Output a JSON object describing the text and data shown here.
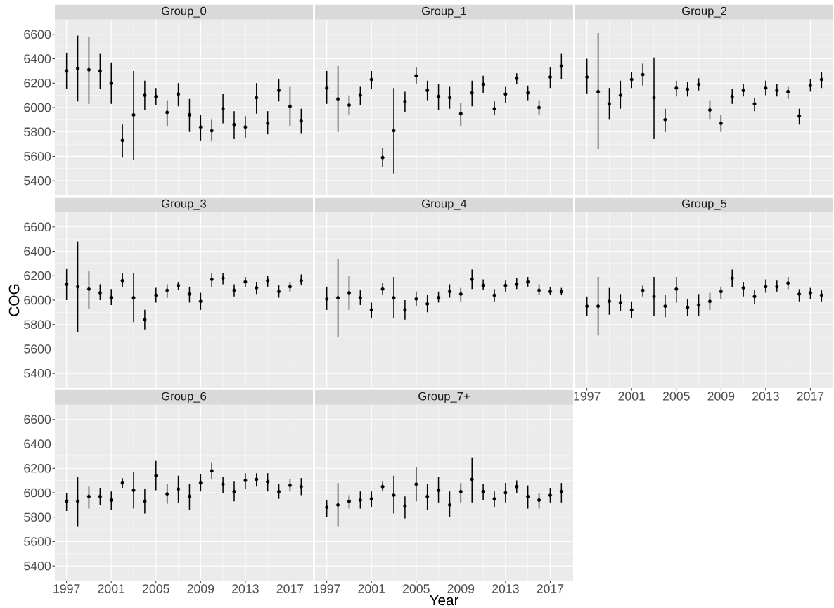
{
  "chart_data": [
    {
      "type": "scatter",
      "title": "Group_0",
      "x": [
        1997,
        1998,
        1999,
        2000,
        2001,
        2002,
        2003,
        2004,
        2005,
        2006,
        2007,
        2008,
        2009,
        2010,
        2011,
        2012,
        2013,
        2014,
        2015,
        2016,
        2017,
        2018
      ],
      "color": "#000000",
      "marker": "circle",
      "grid": true,
      "tick_labels": "y",
      "xlim": [
        1995.95,
        2019.05
      ],
      "ylim": [
        5280,
        6720
      ],
      "xticks": [
        1997,
        2001,
        2005,
        2009,
        2013,
        2017
      ],
      "yticks": [
        5400,
        5600,
        5800,
        6000,
        6200,
        6400,
        6600
      ],
      "values": [
        6300,
        6320,
        6310,
        6300,
        6200,
        5730,
        5940,
        6100,
        6090,
        5960,
        6110,
        5940,
        5840,
        5810,
        5990,
        5860,
        5840,
        6080,
        5870,
        6140,
        6010,
        5890
      ],
      "errors": [
        [
          6150,
          6450
        ],
        [
          6050,
          6590
        ],
        [
          6030,
          6580
        ],
        [
          6150,
          6440
        ],
        [
          6030,
          6370
        ],
        [
          5590,
          5860
        ],
        [
          5570,
          6300
        ],
        [
          5980,
          6220
        ],
        [
          6020,
          6160
        ],
        [
          5850,
          6060
        ],
        [
          6010,
          6200
        ],
        [
          5800,
          6070
        ],
        [
          5730,
          5940
        ],
        [
          5730,
          5900
        ],
        [
          5870,
          6110
        ],
        [
          5740,
          5970
        ],
        [
          5750,
          5930
        ],
        [
          5950,
          6200
        ],
        [
          5780,
          5970
        ],
        [
          6050,
          6230
        ],
        [
          5850,
          6170
        ],
        [
          5790,
          5990
        ]
      ]
    },
    {
      "type": "scatter",
      "title": "Group_1",
      "x": [
        1997,
        1998,
        1999,
        2000,
        2001,
        2002,
        2003,
        2004,
        2005,
        2006,
        2007,
        2008,
        2009,
        2010,
        2011,
        2012,
        2013,
        2014,
        2015,
        2016,
        2017,
        2018
      ],
      "color": "#000000",
      "marker": "circle",
      "grid": true,
      "tick_labels": false,
      "xlim": [
        1995.95,
        2019.05
      ],
      "ylim": [
        5280,
        6720
      ],
      "xticks": [
        1997,
        2001,
        2005,
        2009,
        2013,
        2017
      ],
      "yticks": [
        5400,
        5600,
        5800,
        6000,
        6200,
        6400,
        6600
      ],
      "values": [
        6160,
        6070,
        6020,
        6100,
        6230,
        5590,
        5810,
        6050,
        6260,
        6140,
        6090,
        6080,
        5950,
        6120,
        6190,
        5990,
        6110,
        6240,
        6120,
        6000,
        6250,
        6340
      ],
      "errors": [
        [
          6030,
          6300
        ],
        [
          5800,
          6340
        ],
        [
          5940,
          6100
        ],
        [
          6020,
          6170
        ],
        [
          6150,
          6300
        ],
        [
          5510,
          5670
        ],
        [
          5460,
          6160
        ],
        [
          5960,
          6130
        ],
        [
          6190,
          6330
        ],
        [
          6060,
          6220
        ],
        [
          5980,
          6190
        ],
        [
          5990,
          6170
        ],
        [
          5850,
          6040
        ],
        [
          6010,
          6220
        ],
        [
          6120,
          6260
        ],
        [
          5940,
          6050
        ],
        [
          6040,
          6170
        ],
        [
          6190,
          6280
        ],
        [
          6060,
          6180
        ],
        [
          5940,
          6060
        ],
        [
          6160,
          6330
        ],
        [
          6230,
          6440
        ]
      ]
    },
    {
      "type": "scatter",
      "title": "Group_2",
      "x": [
        1997,
        1998,
        1999,
        2000,
        2001,
        2002,
        2003,
        2004,
        2005,
        2006,
        2007,
        2008,
        2009,
        2010,
        2011,
        2012,
        2013,
        2014,
        2015,
        2016,
        2017,
        2018
      ],
      "color": "#000000",
      "marker": "circle",
      "grid": true,
      "tick_labels": false,
      "xlim": [
        1995.95,
        2019.05
      ],
      "ylim": [
        5280,
        6720
      ],
      "xticks": [
        1997,
        2001,
        2005,
        2009,
        2013,
        2017
      ],
      "yticks": [
        5400,
        5600,
        5800,
        6000,
        6200,
        6400,
        6600
      ],
      "values": [
        6250,
        6130,
        6030,
        6100,
        6230,
        6270,
        6080,
        5900,
        6160,
        6150,
        6190,
        5980,
        5870,
        6090,
        6140,
        6030,
        6160,
        6140,
        6130,
        5930,
        6180,
        6230
      ],
      "errors": [
        [
          6110,
          6400
        ],
        [
          5660,
          6610
        ],
        [
          5900,
          6160
        ],
        [
          5990,
          6220
        ],
        [
          6160,
          6290
        ],
        [
          6180,
          6360
        ],
        [
          5740,
          6410
        ],
        [
          5800,
          5990
        ],
        [
          6090,
          6220
        ],
        [
          6090,
          6210
        ],
        [
          6140,
          6240
        ],
        [
          5900,
          6060
        ],
        [
          5800,
          5940
        ],
        [
          6030,
          6150
        ],
        [
          6090,
          6190
        ],
        [
          5970,
          6080
        ],
        [
          6100,
          6220
        ],
        [
          6090,
          6190
        ],
        [
          6070,
          6170
        ],
        [
          5860,
          5990
        ],
        [
          6130,
          6230
        ],
        [
          6160,
          6290
        ]
      ]
    },
    {
      "type": "scatter",
      "title": "Group_3",
      "ylabel": "COG",
      "x": [
        1997,
        1998,
        1999,
        2000,
        2001,
        2002,
        2003,
        2004,
        2005,
        2006,
        2007,
        2008,
        2009,
        2010,
        2011,
        2012,
        2013,
        2014,
        2015,
        2016,
        2017,
        2018
      ],
      "color": "#000000",
      "marker": "circle",
      "grid": true,
      "tick_labels": "y",
      "xlim": [
        1995.95,
        2019.05
      ],
      "ylim": [
        5280,
        6720
      ],
      "xticks": [
        1997,
        2001,
        2005,
        2009,
        2013,
        2017
      ],
      "yticks": [
        5400,
        5600,
        5800,
        6000,
        6200,
        6400,
        6600
      ],
      "values": [
        6130,
        6110,
        6090,
        6060,
        6020,
        6160,
        6020,
        5840,
        6040,
        6080,
        6120,
        6050,
        5990,
        6170,
        6180,
        6080,
        6150,
        6100,
        6160,
        6070,
        6110,
        6160
      ],
      "errors": [
        [
          6000,
          6260
        ],
        [
          5740,
          6480
        ],
        [
          5930,
          6240
        ],
        [
          6000,
          6130
        ],
        [
          5960,
          6090
        ],
        [
          6110,
          6220
        ],
        [
          5820,
          6220
        ],
        [
          5760,
          5920
        ],
        [
          5980,
          6100
        ],
        [
          6020,
          6130
        ],
        [
          6080,
          6150
        ],
        [
          5980,
          6110
        ],
        [
          5920,
          6060
        ],
        [
          6110,
          6220
        ],
        [
          6130,
          6220
        ],
        [
          6030,
          6130
        ],
        [
          6110,
          6190
        ],
        [
          6050,
          6150
        ],
        [
          6110,
          6200
        ],
        [
          6020,
          6120
        ],
        [
          6070,
          6150
        ],
        [
          6120,
          6210
        ]
      ]
    },
    {
      "type": "scatter",
      "title": "Group_4",
      "x": [
        1997,
        1998,
        1999,
        2000,
        2001,
        2002,
        2003,
        2004,
        2005,
        2006,
        2007,
        2008,
        2009,
        2010,
        2011,
        2012,
        2013,
        2014,
        2015,
        2016,
        2017,
        2018
      ],
      "color": "#000000",
      "marker": "circle",
      "grid": true,
      "tick_labels": false,
      "xlim": [
        1995.95,
        2019.05
      ],
      "ylim": [
        5280,
        6720
      ],
      "xticks": [
        1997,
        2001,
        2005,
        2009,
        2013,
        2017
      ],
      "yticks": [
        5400,
        5600,
        5800,
        6000,
        6200,
        6400,
        6600
      ],
      "values": [
        6010,
        6020,
        6060,
        6020,
        5920,
        6090,
        6020,
        5920,
        6010,
        5970,
        6020,
        6070,
        6050,
        6170,
        6120,
        6040,
        6120,
        6130,
        6150,
        6080,
        6070,
        6070
      ],
      "errors": [
        [
          5920,
          6110
        ],
        [
          5700,
          6340
        ],
        [
          5920,
          6200
        ],
        [
          5960,
          6080
        ],
        [
          5850,
          5980
        ],
        [
          6040,
          6140
        ],
        [
          5850,
          6190
        ],
        [
          5840,
          6000
        ],
        [
          5950,
          6070
        ],
        [
          5900,
          6040
        ],
        [
          5980,
          6070
        ],
        [
          6020,
          6130
        ],
        [
          5990,
          6100
        ],
        [
          6090,
          6250
        ],
        [
          6080,
          6170
        ],
        [
          5990,
          6090
        ],
        [
          6070,
          6160
        ],
        [
          6090,
          6180
        ],
        [
          6110,
          6190
        ],
        [
          6040,
          6130
        ],
        [
          6040,
          6110
        ],
        [
          6040,
          6100
        ]
      ]
    },
    {
      "type": "scatter",
      "title": "Group_5",
      "x": [
        1997,
        1998,
        1999,
        2000,
        2001,
        2002,
        2003,
        2004,
        2005,
        2006,
        2007,
        2008,
        2009,
        2010,
        2011,
        2012,
        2013,
        2014,
        2015,
        2016,
        2017,
        2018
      ],
      "color": "#000000",
      "marker": "circle",
      "grid": true,
      "tick_labels": "x",
      "xlim": [
        1995.95,
        2019.05
      ],
      "ylim": [
        5280,
        6720
      ],
      "xticks": [
        1997,
        2001,
        2005,
        2009,
        2013,
        2017
      ],
      "yticks": [
        5400,
        5600,
        5800,
        6000,
        6200,
        6400,
        6600
      ],
      "values": [
        5950,
        5950,
        5990,
        5980,
        5920,
        6080,
        6030,
        5950,
        6090,
        5940,
        5960,
        5990,
        6070,
        6180,
        6100,
        6030,
        6110,
        6110,
        6140,
        6050,
        6060,
        6040
      ],
      "errors": [
        [
          5870,
          6030
        ],
        [
          5710,
          6190
        ],
        [
          5880,
          6100
        ],
        [
          5910,
          6050
        ],
        [
          5850,
          5990
        ],
        [
          6030,
          6120
        ],
        [
          5870,
          6190
        ],
        [
          5860,
          6040
        ],
        [
          5980,
          6190
        ],
        [
          5870,
          6010
        ],
        [
          5870,
          6050
        ],
        [
          5920,
          6060
        ],
        [
          6010,
          6110
        ],
        [
          6110,
          6250
        ],
        [
          6030,
          6150
        ],
        [
          5970,
          6080
        ],
        [
          6060,
          6170
        ],
        [
          6070,
          6160
        ],
        [
          6090,
          6190
        ],
        [
          5990,
          6090
        ],
        [
          6010,
          6100
        ],
        [
          5990,
          6080
        ]
      ]
    },
    {
      "type": "scatter",
      "title": "Group_6",
      "x": [
        1997,
        1998,
        1999,
        2000,
        2001,
        2002,
        2003,
        2004,
        2005,
        2006,
        2007,
        2008,
        2009,
        2010,
        2011,
        2012,
        2013,
        2014,
        2015,
        2016,
        2017,
        2018
      ],
      "color": "#000000",
      "marker": "circle",
      "grid": true,
      "xlim": [
        1995.95,
        2019.05
      ],
      "ylim": [
        5280,
        6720
      ],
      "xticks": [
        1997,
        2001,
        2005,
        2009,
        2013,
        2017
      ],
      "yticks": [
        5400,
        5600,
        5800,
        6000,
        6200,
        6400,
        6600
      ],
      "values": [
        5930,
        5930,
        5970,
        5970,
        5940,
        6080,
        6020,
        5930,
        6140,
        5990,
        6030,
        5970,
        6080,
        6180,
        6070,
        6010,
        6100,
        6110,
        6090,
        6010,
        6060,
        6050
      ],
      "errors": [
        [
          5850,
          6000
        ],
        [
          5720,
          6130
        ],
        [
          5870,
          6050
        ],
        [
          5900,
          6040
        ],
        [
          5860,
          6010
        ],
        [
          6040,
          6120
        ],
        [
          5870,
          6170
        ],
        [
          5830,
          6030
        ],
        [
          6020,
          6260
        ],
        [
          5910,
          6070
        ],
        [
          5920,
          6140
        ],
        [
          5860,
          6070
        ],
        [
          6010,
          6150
        ],
        [
          6110,
          6250
        ],
        [
          6000,
          6130
        ],
        [
          5930,
          6090
        ],
        [
          6030,
          6160
        ],
        [
          6050,
          6160
        ],
        [
          6010,
          6160
        ],
        [
          5950,
          6070
        ],
        [
          6010,
          6110
        ],
        [
          5980,
          6120
        ]
      ]
    },
    {
      "type": "scatter",
      "title": "Group_7+",
      "xlabel": "Year",
      "x": [
        1997,
        1998,
        1999,
        2000,
        2001,
        2002,
        2003,
        2004,
        2005,
        2006,
        2007,
        2008,
        2009,
        2010,
        2011,
        2012,
        2013,
        2014,
        2015,
        2016,
        2017,
        2018
      ],
      "color": "#000000",
      "marker": "circle",
      "grid": true,
      "tick_labels": "x",
      "xlim": [
        1995.95,
        2019.05
      ],
      "ylim": [
        5280,
        6720
      ],
      "xticks": [
        1997,
        2001,
        2005,
        2009,
        2013,
        2017
      ],
      "yticks": [
        5400,
        5600,
        5800,
        6000,
        6200,
        6400,
        6600
      ],
      "values": [
        5880,
        5900,
        5930,
        5940,
        5950,
        6050,
        5980,
        5890,
        6070,
        5970,
        6020,
        5900,
        6010,
        6110,
        6010,
        5950,
        6000,
        6050,
        5970,
        5940,
        5980,
        6010
      ],
      "errors": [
        [
          5800,
          5940
        ],
        [
          5720,
          6080
        ],
        [
          5870,
          5980
        ],
        [
          5870,
          6010
        ],
        [
          5880,
          6010
        ],
        [
          6010,
          6090
        ],
        [
          5830,
          6140
        ],
        [
          5790,
          5970
        ],
        [
          5930,
          6210
        ],
        [
          5860,
          6070
        ],
        [
          5920,
          6130
        ],
        [
          5800,
          6010
        ],
        [
          5920,
          6080
        ],
        [
          5920,
          6290
        ],
        [
          5940,
          6070
        ],
        [
          5880,
          6010
        ],
        [
          5920,
          6080
        ],
        [
          6000,
          6100
        ],
        [
          5870,
          6060
        ],
        [
          5870,
          6000
        ],
        [
          5920,
          6040
        ],
        [
          5920,
          6080
        ]
      ]
    }
  ]
}
